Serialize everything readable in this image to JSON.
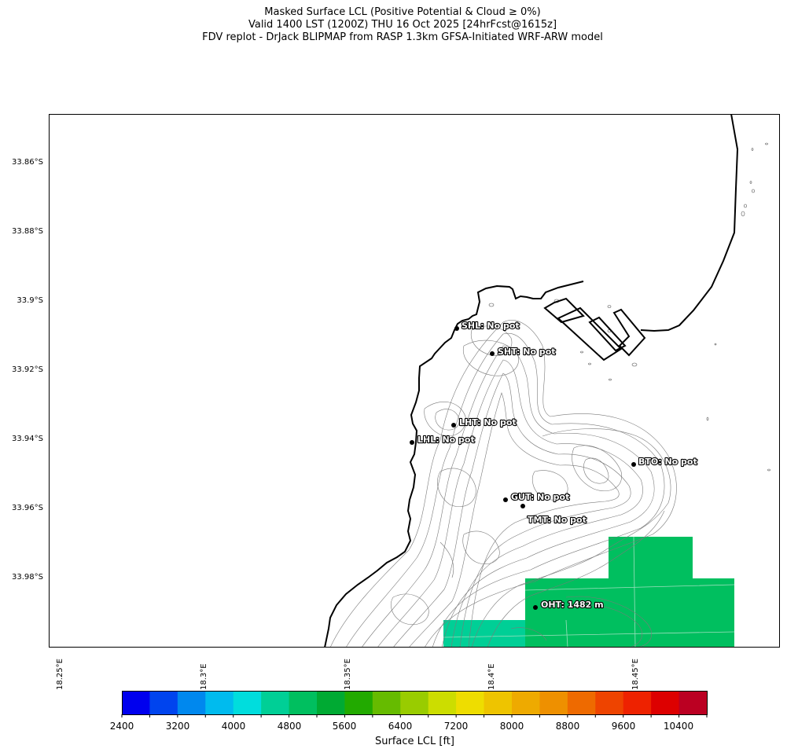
{
  "title": {
    "line1": "Masked Surface LCL (Positive Potential & Cloud ≥ 0%)",
    "line2": "Valid 1400 LST (1200Z) THU 16 Oct 2025 [24hrFcst@1615z]",
    "line3": "FDV replot - DrJack BLIPMAP from RASP 1.3km GFSA-Initiated WRF-ARW model"
  },
  "map": {
    "lat_labels": [
      "33.86°S",
      "33.88°S",
      "33.9°S",
      "33.92°S",
      "33.94°S",
      "33.96°S",
      "33.98°S"
    ],
    "lon_labels": [
      "18.25°E",
      "18.3°E",
      "18.35°E",
      "18.4°E",
      "18.45°E"
    ],
    "sites": [
      {
        "code": "SHL",
        "label": "SHL: No pot"
      },
      {
        "code": "SHT",
        "label": "SHT: No pot"
      },
      {
        "code": "LHT",
        "label": "LHT: No pot"
      },
      {
        "code": "LHL",
        "label": "LHL: No pot"
      },
      {
        "code": "BTO",
        "label": "BTO: No pot"
      },
      {
        "code": "GUT",
        "label": "GUT: No pot"
      },
      {
        "code": "TMT",
        "label": "TMT: No pot"
      },
      {
        "code": "OHT",
        "label": "OHT: 1482 m"
      }
    ],
    "lcl_fill_colors": {
      "green": "#00bf5f",
      "teal": "#00cf96"
    }
  },
  "colorbar": {
    "label": "Surface LCL [ft]",
    "tick_labels": [
      "2400",
      "3200",
      "4000",
      "4800",
      "5600",
      "6400",
      "7200",
      "8000",
      "8800",
      "9600",
      "10400"
    ],
    "colors": [
      "#0000ee",
      "#0044ee",
      "#0088ee",
      "#00bbee",
      "#00dddd",
      "#00cf96",
      "#00bf5f",
      "#00aa33",
      "#22aa00",
      "#66bb00",
      "#99cc00",
      "#ccdd00",
      "#eedd00",
      "#eec400",
      "#eeaa00",
      "#ee9000",
      "#ee6a00",
      "#ee4400",
      "#ee2200",
      "#dd0000",
      "#bb0022"
    ]
  }
}
